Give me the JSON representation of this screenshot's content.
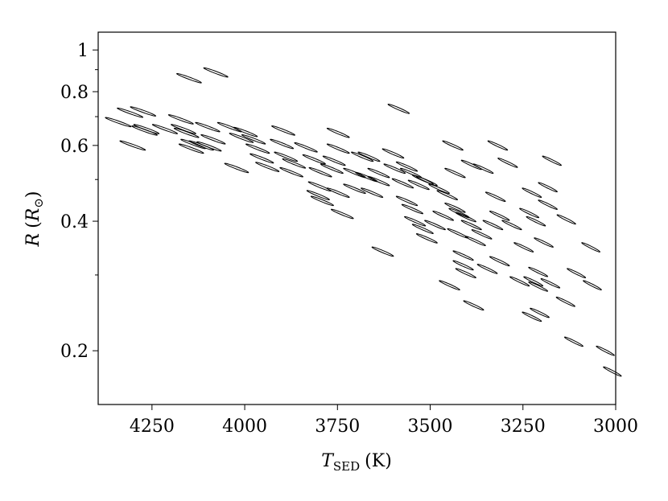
{
  "chart_data": {
    "type": "scatter",
    "xlabel": {
      "symbol": "T",
      "subscript": "SED",
      "unit": "(K)"
    },
    "ylabel": {
      "symbol": "R",
      "open": "(",
      "unit_symbol": "R",
      "subscript": "⊙",
      "close": ")"
    },
    "xlim": [
      4395,
      3000
    ],
    "xticks": [
      4250,
      4000,
      3750,
      3500,
      3250,
      3000
    ],
    "ylim": [
      0.15,
      1.1
    ],
    "log_y": true,
    "yticks": [
      0.2,
      0.4,
      0.6,
      0.8,
      1
    ],
    "yminorticks": [
      0.3,
      0.5,
      0.7,
      0.9
    ],
    "color": "#000000",
    "x_err_pct": 0.8,
    "y_err_pct": 2.5,
    "correlation": 0.97,
    "x": [
      4341,
      4309,
      4274,
      4270,
      4302,
      4265,
      4150,
      4078,
      4215,
      4172,
      4165,
      4157,
      4139,
      4117,
      4100,
      4041,
      4096,
      4144,
      4085,
      4009,
      3998,
      3976,
      4022,
      3965,
      3954,
      3939,
      3896,
      3900,
      3889,
      3867,
      3874,
      3835,
      3813,
      3796,
      3748,
      3748,
      3759,
      3765,
      3798,
      3802,
      3791,
      3748,
      3704,
      3704,
      3683,
      3672,
      3665,
      3657,
      3737,
      3639,
      3639,
      3600,
      3596,
      3585,
      3574,
      3563,
      3552,
      3563,
      3548,
      3531,
      3520,
      3509,
      3628,
      3541,
      3520,
      3509,
      3487,
      3476,
      3465,
      3454,
      3448,
      3439,
      3433,
      3433,
      3426,
      3422,
      3411,
      3411,
      3404,
      3404,
      3389,
      3389,
      3383,
      3378,
      3361,
      3357,
      3346,
      3331,
      3324,
      3318,
      3313,
      3313,
      3291,
      3280,
      3259,
      3248,
      3233,
      3226,
      3226,
      3222,
      3215,
      3209,
      3209,
      3205,
      3194,
      3183,
      3183,
      3176,
      3172,
      3135,
      3133,
      3113,
      3106,
      3067,
      3063,
      3028,
      3009
    ],
    "values": [
      0.68,
      0.715,
      0.72,
      0.65,
      0.6,
      0.655,
      0.86,
      0.887,
      0.655,
      0.69,
      0.655,
      0.642,
      0.605,
      0.6,
      0.662,
      0.662,
      0.597,
      0.59,
      0.62,
      0.625,
      0.645,
      0.62,
      0.532,
      0.59,
      0.56,
      0.535,
      0.65,
      0.605,
      0.565,
      0.545,
      0.52,
      0.594,
      0.557,
      0.52,
      0.642,
      0.59,
      0.553,
      0.53,
      0.482,
      0.46,
      0.446,
      0.466,
      0.518,
      0.476,
      0.565,
      0.507,
      0.565,
      0.466,
      0.416,
      0.518,
      0.496,
      0.575,
      0.53,
      0.73,
      0.49,
      0.536,
      0.518,
      0.446,
      0.427,
      0.486,
      0.5,
      0.496,
      0.34,
      0.4,
      0.384,
      0.365,
      0.392,
      0.476,
      0.412,
      0.46,
      0.284,
      0.6,
      0.518,
      0.43,
      0.375,
      0.418,
      0.316,
      0.333,
      0.409,
      0.303,
      0.392,
      0.541,
      0.255,
      0.36,
      0.373,
      0.53,
      0.31,
      0.392,
      0.456,
      0.6,
      0.412,
      0.323,
      0.547,
      0.392,
      0.29,
      0.348,
      0.418,
      0.466,
      0.24,
      0.29,
      0.4,
      0.282,
      0.305,
      0.245,
      0.357,
      0.437,
      0.48,
      0.287,
      0.553,
      0.26,
      0.404,
      0.21,
      0.303,
      0.348,
      0.284,
      0.2,
      0.179
    ]
  }
}
